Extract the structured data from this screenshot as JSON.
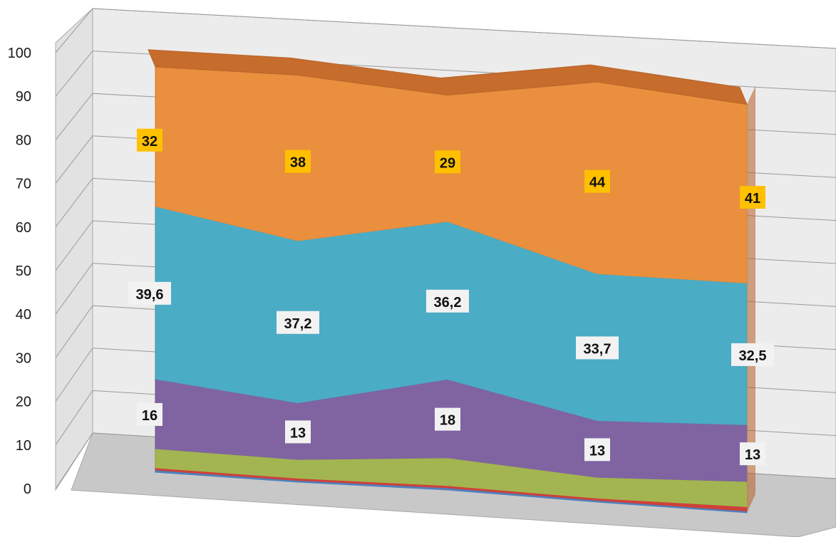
{
  "chart_data": {
    "type": "area",
    "stacked": true,
    "style": "3d",
    "categories": [
      "",
      "",
      "",
      "",
      ""
    ],
    "ylim": [
      0,
      100
    ],
    "yticks": [
      "0",
      "10",
      "20",
      "30",
      "40",
      "50",
      "60",
      "70",
      "80",
      "90",
      "100"
    ],
    "grid": true,
    "legend": "none",
    "title": "",
    "xlabel": "",
    "ylabel": "",
    "series": [
      {
        "color": "#4f81bd",
        "values": [
          0.5,
          0.4,
          0.5,
          0.4,
          0.4
        ],
        "labels": [
          "",
          "",
          "",
          "",
          ""
        ]
      },
      {
        "color": "#d0403a",
        "values": [
          0.5,
          0.5,
          0.5,
          0.5,
          1.0
        ],
        "labels": [
          "",
          "",
          "",
          "",
          ""
        ]
      },
      {
        "color": "#a3b550",
        "values": [
          4.4,
          4.3,
          6.4,
          4.8,
          5.8
        ],
        "labels": [
          "",
          "",
          "",
          "",
          ""
        ]
      },
      {
        "color": "#8064a2",
        "values": [
          16,
          13,
          18,
          13,
          13
        ],
        "labels": [
          "16",
          "13",
          "18",
          "13",
          "13"
        ]
      },
      {
        "color": "#4bacc6",
        "values": [
          39.6,
          37.2,
          36.2,
          33.7,
          32.5
        ],
        "labels": [
          "39,6",
          "37,2",
          "36,2",
          "33,7",
          "32,5"
        ]
      },
      {
        "color": "#e98f3e",
        "values": [
          32,
          38,
          29,
          44,
          41
        ],
        "labels": [
          "32",
          "38",
          "29",
          "44",
          "41"
        ]
      }
    ],
    "label_styles": {
      "default": {
        "bg": "#f2f2f2",
        "fg": "#111111"
      },
      "top": {
        "bg": "#ffc000",
        "fg": "#111111"
      }
    },
    "colors": {
      "wall": "#ececec",
      "floor": "#c8c8c8",
      "wall_edge": "#a8a8a8",
      "gridline": "#9a9a9a",
      "top_face": "#c66c2c"
    }
  }
}
